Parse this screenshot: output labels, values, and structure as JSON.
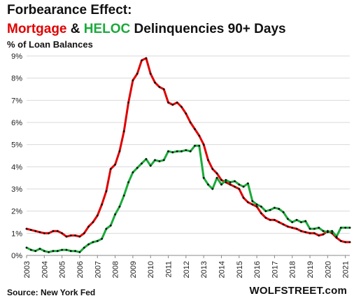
{
  "title": {
    "line1": "Forbearance Effect:",
    "mortgage_word": "Mortgage",
    "amp": " & ",
    "heloc_word": "HELOC",
    "rest": " Delinquencies 90+ Days"
  },
  "footer": {
    "source": "Source: New York Fed",
    "brand": "WOLFSTREET.com"
  },
  "chart_data": {
    "type": "line",
    "ylabel": "% of Loan Balances",
    "xlabel": "",
    "ylim": [
      0,
      9
    ],
    "xlim": [
      2003,
      2021.25
    ],
    "grid": true,
    "y_ticks": [
      "0%",
      "1%",
      "2%",
      "3%",
      "4%",
      "5%",
      "6%",
      "7%",
      "8%",
      "9%"
    ],
    "x_ticks": [
      "2003",
      "2004",
      "2005",
      "2006",
      "2007",
      "2008",
      "2009",
      "2010",
      "2011",
      "2012",
      "2013",
      "2014",
      "2015",
      "2016",
      "2017",
      "2018",
      "2019",
      "2020",
      "2021"
    ],
    "colors": {
      "mortgage": "#e00000",
      "heloc": "#1aaa3a",
      "markers": "#111111",
      "grid": "#d9d9d9"
    },
    "series": [
      {
        "name": "Mortgage",
        "x": [
          2003,
          2003.25,
          2003.5,
          2003.75,
          2004,
          2004.25,
          2004.5,
          2004.75,
          2005,
          2005.25,
          2005.5,
          2005.75,
          2006,
          2006.25,
          2006.5,
          2006.75,
          2007,
          2007.25,
          2007.5,
          2007.75,
          2008,
          2008.25,
          2008.5,
          2008.75,
          2009,
          2009.25,
          2009.5,
          2009.75,
          2010,
          2010.25,
          2010.5,
          2010.75,
          2011,
          2011.25,
          2011.5,
          2011.75,
          2012,
          2012.25,
          2012.5,
          2012.75,
          2013,
          2013.25,
          2013.5,
          2013.75,
          2014,
          2014.25,
          2014.5,
          2014.75,
          2015,
          2015.25,
          2015.5,
          2015.75,
          2016,
          2016.25,
          2016.5,
          2016.75,
          2017,
          2017.25,
          2017.5,
          2017.75,
          2018,
          2018.25,
          2018.5,
          2018.75,
          2019,
          2019.25,
          2019.5,
          2019.75,
          2020,
          2020.25,
          2020.5,
          2020.75,
          2021,
          2021.25
        ],
        "values": [
          1.2,
          1.15,
          1.1,
          1.05,
          1.0,
          1.0,
          1.1,
          1.1,
          1.0,
          0.85,
          0.9,
          0.9,
          0.85,
          1.0,
          1.3,
          1.5,
          1.8,
          2.3,
          2.9,
          3.9,
          4.1,
          4.7,
          5.6,
          6.9,
          7.9,
          8.2,
          8.8,
          8.9,
          8.2,
          7.8,
          7.6,
          7.5,
          6.9,
          6.8,
          6.9,
          6.7,
          6.4,
          6.0,
          5.7,
          5.4,
          5.0,
          4.3,
          3.9,
          3.7,
          3.4,
          3.3,
          3.2,
          3.1,
          3.0,
          2.6,
          2.4,
          2.3,
          2.2,
          1.9,
          1.7,
          1.6,
          1.6,
          1.5,
          1.4,
          1.3,
          1.25,
          1.2,
          1.1,
          1.05,
          1.0,
          1.0,
          0.9,
          0.95,
          1.1,
          1.0,
          0.8,
          0.65,
          0.6,
          0.6
        ]
      },
      {
        "name": "HELOC",
        "x": [
          2003,
          2003.25,
          2003.5,
          2003.75,
          2004,
          2004.25,
          2004.5,
          2004.75,
          2005,
          2005.25,
          2005.5,
          2005.75,
          2006,
          2006.25,
          2006.5,
          2006.75,
          2007,
          2007.25,
          2007.5,
          2007.75,
          2008,
          2008.25,
          2008.5,
          2008.75,
          2009,
          2009.25,
          2009.5,
          2009.75,
          2010,
          2010.25,
          2010.5,
          2010.75,
          2011,
          2011.25,
          2011.5,
          2011.75,
          2012,
          2012.25,
          2012.5,
          2012.75,
          2013,
          2013.25,
          2013.5,
          2013.75,
          2014,
          2014.25,
          2014.5,
          2014.75,
          2015,
          2015.25,
          2015.5,
          2015.75,
          2016,
          2016.25,
          2016.5,
          2016.75,
          2017,
          2017.25,
          2017.5,
          2017.75,
          2018,
          2018.25,
          2018.5,
          2018.75,
          2019,
          2019.25,
          2019.5,
          2019.75,
          2020,
          2020.25,
          2020.5,
          2020.75,
          2021,
          2021.25
        ],
        "values": [
          0.35,
          0.25,
          0.2,
          0.3,
          0.2,
          0.15,
          0.2,
          0.2,
          0.25,
          0.25,
          0.2,
          0.2,
          0.15,
          0.35,
          0.5,
          0.6,
          0.65,
          0.75,
          1.2,
          1.35,
          1.85,
          2.2,
          2.7,
          3.3,
          3.75,
          3.95,
          4.15,
          4.35,
          4.05,
          4.3,
          4.25,
          4.3,
          4.7,
          4.65,
          4.7,
          4.7,
          4.75,
          4.7,
          4.95,
          4.95,
          3.5,
          3.2,
          3.0,
          3.5,
          3.2,
          3.4,
          3.3,
          3.35,
          3.2,
          3.1,
          3.25,
          2.45,
          2.3,
          2.2,
          2.0,
          2.05,
          2.15,
          2.1,
          1.95,
          1.65,
          1.5,
          1.6,
          1.5,
          1.55,
          1.2,
          1.2,
          1.25,
          1.1,
          1.05,
          1.1,
          0.85,
          1.25,
          1.25,
          1.25
        ]
      }
    ]
  }
}
